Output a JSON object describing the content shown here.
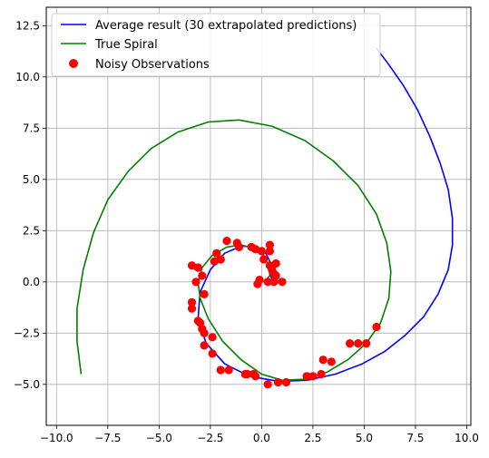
{
  "chart_data": {
    "type": "line",
    "title": "",
    "xlabel": "",
    "ylabel": "",
    "xlim": [
      -10.5,
      10.2
    ],
    "ylim": [
      -7.0,
      13.4
    ],
    "xticks": [
      -10,
      -7.5,
      -5,
      -2.5,
      0,
      2.5,
      5,
      7.5,
      10
    ],
    "xtick_labels": [
      "−10.0",
      "−7.5",
      "−5.0",
      "−2.5",
      "0.0",
      "2.5",
      "5.0",
      "7.5",
      "10.0"
    ],
    "yticks": [
      -5,
      -2.5,
      0,
      2.5,
      5,
      7.5,
      10,
      12.5
    ],
    "ytick_labels": [
      "−5.0",
      "−2.5",
      "0.0",
      "2.5",
      "5.0",
      "7.5",
      "10.0",
      "12.5"
    ],
    "grid": true,
    "legend_position": "upper-left",
    "series": [
      {
        "name": "Average result (30 extrapolated predictions)",
        "kind": "line",
        "color": "#0000ff",
        "x": [
          5.6,
          6.2,
          6.9,
          7.6,
          8.2,
          8.7,
          9.1,
          9.3,
          9.3,
          9.1,
          8.6,
          7.9,
          7.0,
          6.0,
          4.9,
          3.6,
          2.2,
          0.8,
          -0.6,
          -1.8,
          -2.7,
          -3.1,
          -3.0,
          -2.5,
          -1.8,
          -1.0,
          -0.3,
          0.2,
          0.4,
          0.5,
          0.4,
          0.5,
          0.8
        ],
        "y": [
          11.4,
          10.6,
          9.6,
          8.4,
          7.1,
          5.8,
          4.5,
          3.1,
          1.8,
          0.6,
          -0.6,
          -1.7,
          -2.6,
          -3.4,
          -4.0,
          -4.5,
          -4.8,
          -4.85,
          -4.6,
          -4.0,
          -3.0,
          -1.8,
          -0.5,
          0.6,
          1.4,
          1.75,
          1.7,
          1.4,
          1.0,
          0.6,
          0.35,
          0.15,
          0.05
        ]
      },
      {
        "name": "True Spiral",
        "kind": "line",
        "color": "#008000",
        "x": [
          0.1,
          0.4,
          0.35,
          0.1,
          -0.4,
          -1.0,
          -1.7,
          -2.4,
          -2.9,
          -3.1,
          -3.0,
          -2.6,
          -1.9,
          -1.0,
          0.0,
          1.0,
          2.1,
          3.2,
          4.2,
          5.1,
          5.8,
          6.2,
          6.3,
          6.1,
          5.6,
          4.7,
          3.5,
          2.1,
          0.5,
          -1.1,
          -2.6,
          -4.1,
          -5.4,
          -6.5,
          -7.5,
          -8.2,
          -8.7,
          -9.0,
          -9.0,
          -8.8
        ],
        "y": [
          0.0,
          0.3,
          0.8,
          1.3,
          1.65,
          1.8,
          1.7,
          1.3,
          0.7,
          0.0,
          -0.8,
          -1.8,
          -2.9,
          -3.8,
          -4.5,
          -4.8,
          -4.75,
          -4.4,
          -3.8,
          -3.0,
          -2.0,
          -0.8,
          0.5,
          1.9,
          3.3,
          4.7,
          5.9,
          6.9,
          7.6,
          7.9,
          7.8,
          7.3,
          6.5,
          5.4,
          4.0,
          2.4,
          0.6,
          -1.3,
          -2.9,
          -4.5
        ]
      },
      {
        "name": "Noisy Observations",
        "kind": "scatter",
        "color": "#ff0000",
        "x": [
          1.0,
          0.7,
          0.6,
          0.5,
          0.7,
          0.4,
          -0.1,
          0.6,
          0.3,
          0.1,
          -0.2,
          0.4,
          0.4,
          0.0,
          -0.5,
          -0.3,
          -1.1,
          -1.2,
          -1.7,
          -2.0,
          -2.2,
          -2.3,
          -2.0,
          -2.9,
          -3.4,
          -3.1,
          -3.2,
          -2.8,
          -3.4,
          -3.4,
          -3.1,
          -3.0,
          -2.9,
          -2.4,
          -2.8,
          -2.4,
          -2.8,
          -2.0,
          -1.6,
          -0.8,
          -0.7,
          -0.4,
          -0.3,
          0.3,
          0.8,
          1.2,
          2.2,
          2.5,
          2.9,
          3.0,
          3.4,
          4.3,
          4.7,
          5.1,
          5.6
        ],
        "y": [
          0.0,
          0.3,
          0.4,
          0.6,
          0.9,
          0.8,
          0.1,
          0.0,
          0.0,
          1.1,
          -0.1,
          1.5,
          1.8,
          1.5,
          1.7,
          1.6,
          1.7,
          1.9,
          2.0,
          1.1,
          1.4,
          1.0,
          1.1,
          0.3,
          0.8,
          0.7,
          0.0,
          -0.6,
          -1.0,
          -1.3,
          -1.9,
          -2.0,
          -2.3,
          -2.7,
          -3.1,
          -3.5,
          -2.5,
          -4.3,
          -4.3,
          -4.5,
          -4.5,
          -4.5,
          -4.6,
          -5.0,
          -4.9,
          -4.9,
          -4.6,
          -4.6,
          -4.5,
          -3.8,
          -3.9,
          -3.0,
          -3.0,
          -3.0,
          -2.2
        ]
      }
    ]
  },
  "legend": {
    "items": [
      {
        "label": "Average result (30 extrapolated predictions)",
        "color": "#0000ff",
        "marker": "line"
      },
      {
        "label": "True Spiral",
        "color": "#008000",
        "marker": "line"
      },
      {
        "label": "Noisy Observations",
        "color": "#ff0000",
        "marker": "dot"
      }
    ]
  }
}
